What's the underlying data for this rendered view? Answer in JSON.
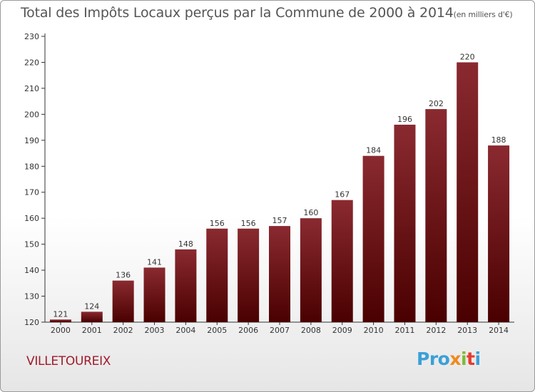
{
  "header": {
    "title": "Total des Impôts Locaux perçus par la Commune de 2000 à 2014",
    "unit_note": "(en milliers d'€)"
  },
  "footer": {
    "commune": "VILLETOUREIX",
    "logo_parts": [
      "Pro",
      "x",
      "i",
      "t",
      "i"
    ]
  },
  "colors": {
    "bar_top": "#8a2a30",
    "bar_bottom": "#4a0000",
    "axis": "#333333",
    "grid": "#888888",
    "title": "#555555",
    "commune": "#9e1b2a"
  },
  "chart_data": {
    "type": "bar",
    "title": "Total des Impôts Locaux perçus par la Commune de 2000 à 2014",
    "xlabel": "",
    "ylabel": "",
    "categories": [
      "2000",
      "2001",
      "2002",
      "2003",
      "2004",
      "2005",
      "2006",
      "2007",
      "2008",
      "2009",
      "2010",
      "2011",
      "2012",
      "2013",
      "2014"
    ],
    "values": [
      121,
      124,
      136,
      141,
      148,
      156,
      156,
      157,
      160,
      167,
      184,
      196,
      202,
      220,
      188
    ],
    "ylim": [
      120,
      230
    ],
    "yticks": [
      120,
      130,
      140,
      150,
      160,
      170,
      180,
      190,
      200,
      210,
      220,
      230
    ],
    "grid": false,
    "legend": "none"
  }
}
